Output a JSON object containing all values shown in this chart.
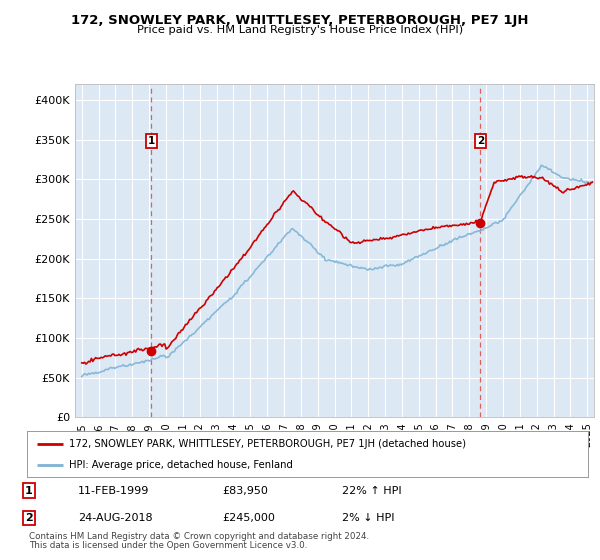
{
  "title": "172, SNOWLEY PARK, WHITTLESEY, PETERBOROUGH, PE7 1JH",
  "subtitle": "Price paid vs. HM Land Registry's House Price Index (HPI)",
  "ylabel_ticks": [
    "£0",
    "£50K",
    "£100K",
    "£150K",
    "£200K",
    "£250K",
    "£300K",
    "£350K",
    "£400K"
  ],
  "ytick_values": [
    0,
    50000,
    100000,
    150000,
    200000,
    250000,
    300000,
    350000,
    400000
  ],
  "ylim": [
    0,
    420000
  ],
  "xlim_start": 1994.6,
  "xlim_end": 2025.4,
  "bg_color": "#dce9f5",
  "grid_color": "#ffffff",
  "marker1": {
    "date_num": 1999.12,
    "value": 83950,
    "label": "1",
    "date_str": "11-FEB-1999",
    "price_str": "£83,950",
    "pct": "22% ↑ HPI"
  },
  "marker2": {
    "date_num": 2018.65,
    "value": 245000,
    "label": "2",
    "date_str": "24-AUG-2018",
    "price_str": "£245,000",
    "pct": "2% ↓ HPI"
  },
  "legend_line1": "172, SNOWLEY PARK, WHITTLESEY, PETERBOROUGH, PE7 1JH (detached house)",
  "legend_line2": "HPI: Average price, detached house, Fenland",
  "footer1": "Contains HM Land Registry data © Crown copyright and database right 2024.",
  "footer2": "This data is licensed under the Open Government Licence v3.0.",
  "red_line_color": "#cc0000",
  "blue_line_color": "#7fb3d3",
  "dashed_line_color": "#e06060"
}
